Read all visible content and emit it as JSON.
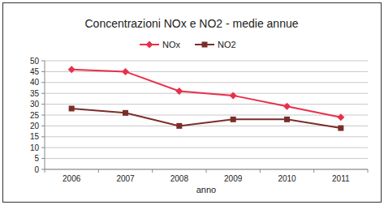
{
  "chart_data": {
    "type": "line",
    "title": "Concentrazioni NOx e NO2 - medie annue",
    "x_label": "anno",
    "categories": [
      "2006",
      "2007",
      "2008",
      "2009",
      "2010",
      "2011"
    ],
    "series": [
      {
        "name": "NOx",
        "color": "#e8304a",
        "marker": "diamond",
        "values": [
          46,
          45,
          36,
          34,
          29,
          24
        ]
      },
      {
        "name": "NO2",
        "color": "#7a2e28",
        "marker": "square",
        "values": [
          28,
          26,
          20,
          23,
          23,
          19
        ]
      }
    ],
    "ylim": [
      0,
      50
    ],
    "yticks": [
      0,
      5,
      10,
      15,
      20,
      25,
      30,
      35,
      40,
      45,
      50
    ],
    "grid": true,
    "legend": "top"
  }
}
